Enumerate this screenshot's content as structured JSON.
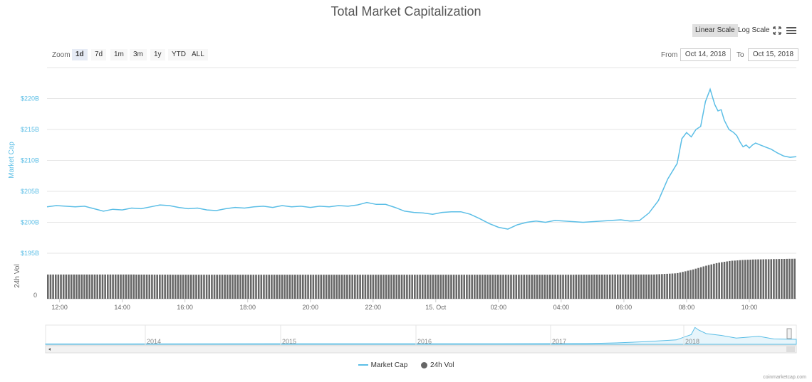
{
  "title": "Total Market Capitalization",
  "toolbar": {
    "linear_label": "Linear Scale",
    "log_label": "Log Scale",
    "fullscreen_icon": "fullscreen-icon",
    "menu_icon": "menu-icon"
  },
  "zoom": {
    "label": "Zoom",
    "buttons": [
      "1d",
      "7d",
      "1m",
      "3m",
      "1y",
      "YTD",
      "ALL"
    ],
    "active": "1d"
  },
  "range": {
    "from_label": "From",
    "from_value": "Oct 14, 2018",
    "to_label": "To",
    "to_value": "Oct 15, 2018"
  },
  "legend": {
    "market_cap": "Market Cap",
    "vol": "24h Vol"
  },
  "credit": "coinmarketcap.com",
  "colors": {
    "market_cap": "#5bbee6",
    "volume": "#666666",
    "axis_label": "#5bbee6"
  },
  "chart_data": {
    "type": "line",
    "ylabel": "Market Cap",
    "ylabel_vol": "24h Vol",
    "y_ticks": [
      "$195B",
      "$200B",
      "$205B",
      "$210B",
      "$215B",
      "$220B"
    ],
    "y_tick_values": [
      195,
      200,
      205,
      210,
      215,
      220
    ],
    "vol_tick": "0",
    "ylim": [
      195,
      225
    ],
    "x_ticks": [
      "12:00",
      "14:00",
      "16:00",
      "18:00",
      "20:00",
      "22:00",
      "15. Oct",
      "02:00",
      "04:00",
      "06:00",
      "08:00",
      "10:00"
    ],
    "x_tick_hours": [
      12,
      14,
      16,
      18,
      20,
      22,
      24,
      26,
      28,
      30,
      32,
      34
    ],
    "xlim_hours": [
      11.6,
      35.5
    ],
    "series": [
      {
        "name": "Market Cap",
        "x": [
          11.6,
          11.9,
          12.2,
          12.5,
          12.8,
          13.1,
          13.4,
          13.7,
          14.0,
          14.3,
          14.6,
          14.9,
          15.2,
          15.5,
          15.8,
          16.1,
          16.4,
          16.7,
          17.0,
          17.3,
          17.6,
          17.9,
          18.2,
          18.5,
          18.8,
          19.1,
          19.4,
          19.7,
          20.0,
          20.3,
          20.6,
          20.9,
          21.2,
          21.5,
          21.8,
          22.1,
          22.4,
          22.7,
          23.0,
          23.3,
          23.6,
          23.9,
          24.2,
          24.5,
          24.8,
          25.1,
          25.4,
          25.7,
          26.0,
          26.3,
          26.6,
          26.9,
          27.2,
          27.5,
          27.8,
          28.1,
          28.4,
          28.7,
          29.0,
          29.3,
          29.6,
          29.9,
          30.2,
          30.5,
          30.8,
          31.1,
          31.4,
          31.7,
          31.85,
          32.0,
          32.15,
          32.3,
          32.45,
          32.6,
          32.75,
          32.9,
          33.0,
          33.1,
          33.2,
          33.35,
          33.5,
          33.6,
          33.7,
          33.8,
          33.9,
          34.0,
          34.1,
          34.2,
          34.3,
          34.5,
          34.7,
          34.9,
          35.1,
          35.3,
          35.5
        ],
        "values": [
          202.5,
          202.7,
          202.6,
          202.5,
          202.6,
          202.2,
          201.8,
          202.1,
          202.0,
          202.3,
          202.2,
          202.5,
          202.8,
          202.7,
          202.4,
          202.2,
          202.3,
          202.0,
          201.9,
          202.2,
          202.4,
          202.3,
          202.5,
          202.6,
          202.4,
          202.7,
          202.5,
          202.6,
          202.4,
          202.6,
          202.5,
          202.7,
          202.6,
          202.8,
          203.2,
          202.9,
          202.9,
          202.4,
          201.8,
          201.6,
          201.5,
          201.3,
          201.6,
          201.7,
          201.7,
          201.3,
          200.6,
          199.8,
          199.2,
          198.9,
          199.6,
          200.0,
          200.2,
          200.0,
          200.3,
          200.2,
          200.1,
          200.0,
          200.1,
          200.2,
          200.3,
          200.4,
          200.2,
          200.3,
          201.5,
          203.5,
          207.0,
          209.5,
          213.5,
          214.5,
          213.8,
          215.0,
          215.5,
          219.5,
          221.5,
          219.0,
          218.0,
          218.2,
          216.5,
          215.0,
          214.5,
          214.0,
          213.0,
          212.2,
          212.5,
          212.0,
          212.5,
          212.8,
          212.6,
          212.2,
          211.8,
          211.2,
          210.7,
          210.5,
          210.6
        ]
      },
      {
        "name": "24h Vol",
        "x": [
          11.6,
          14.0,
          16.0,
          18.0,
          20.0,
          22.0,
          24.0,
          26.0,
          28.0,
          30.0,
          31.0,
          31.7,
          32.2,
          32.6,
          33.0,
          33.4,
          33.8,
          34.2,
          34.6,
          35.0,
          35.5
        ],
        "values": [
          1.0,
          1.0,
          0.99,
          0.99,
          0.99,
          0.99,
          0.99,
          0.99,
          0.99,
          1.0,
          1.0,
          1.05,
          1.2,
          1.35,
          1.48,
          1.56,
          1.6,
          1.62,
          1.63,
          1.64,
          1.65
        ]
      }
    ],
    "navigator": {
      "years": [
        "2014",
        "2015",
        "2016",
        "2017",
        "2018"
      ]
    }
  }
}
